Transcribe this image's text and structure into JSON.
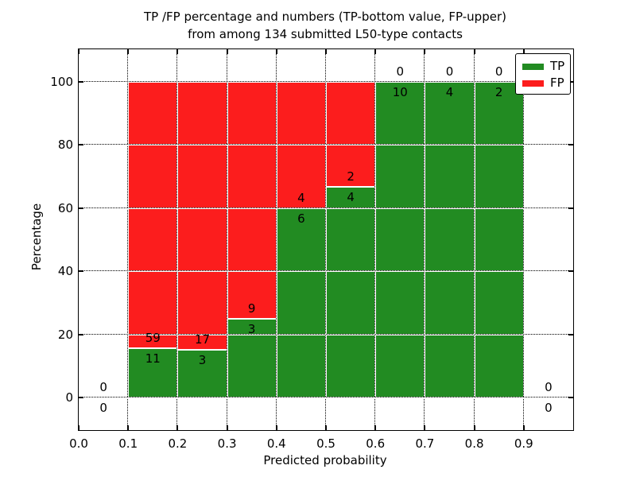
{
  "figure": {
    "title_line1": "TP /FP percentage and numbers (TP-bottom value, FP-upper)",
    "title_line2": "from among 134 submitted L50-type contacts"
  },
  "chart_data": {
    "type": "bar",
    "stacked": true,
    "title": "TP /FP percentage and numbers (TP-bottom value, FP-upper)\nfrom among 134 submitted L50-type contacts",
    "xlabel": "Predicted probability",
    "ylabel": "Percentage",
    "xlim": [
      0.0,
      1.0
    ],
    "ylim": [
      -10.3,
      110.2
    ],
    "xticks": [
      "0.0",
      "0.1",
      "0.2",
      "0.3",
      "0.4",
      "0.5",
      "0.6",
      "0.7",
      "0.8",
      "0.9"
    ],
    "xtick_values": [
      0.0,
      0.1,
      0.2,
      0.3,
      0.4,
      0.5,
      0.6,
      0.7,
      0.8,
      0.9
    ],
    "yticks": [
      "0",
      "20",
      "40",
      "60",
      "80",
      "100"
    ],
    "ytick_values": [
      0,
      20,
      40,
      60,
      80,
      100
    ],
    "grid": "dotted",
    "legend_position": "upper-right",
    "total_contacts": 134,
    "bin_edges": [
      0.0,
      0.1,
      0.2,
      0.3,
      0.4,
      0.5,
      0.6,
      0.7,
      0.8,
      0.9,
      1.0
    ],
    "series": [
      {
        "name": "TP",
        "color": "#228b22",
        "counts": [
          0,
          11,
          3,
          3,
          6,
          4,
          10,
          4,
          2,
          0
        ]
      },
      {
        "name": "FP",
        "color": "#fc1d1d",
        "counts": [
          0,
          59,
          17,
          9,
          4,
          2,
          0,
          0,
          0,
          0
        ]
      }
    ],
    "tp_percent": [
      0,
      15.71,
      15.0,
      25.0,
      60.0,
      66.67,
      100,
      100,
      100,
      0
    ],
    "fp_percent": [
      0,
      84.29,
      85.0,
      75.0,
      40.0,
      33.33,
      0,
      0,
      0,
      0
    ]
  },
  "legend": {
    "items": [
      {
        "label": "TP",
        "color": "#228b22"
      },
      {
        "label": "FP",
        "color": "#fc1d1d"
      }
    ]
  }
}
